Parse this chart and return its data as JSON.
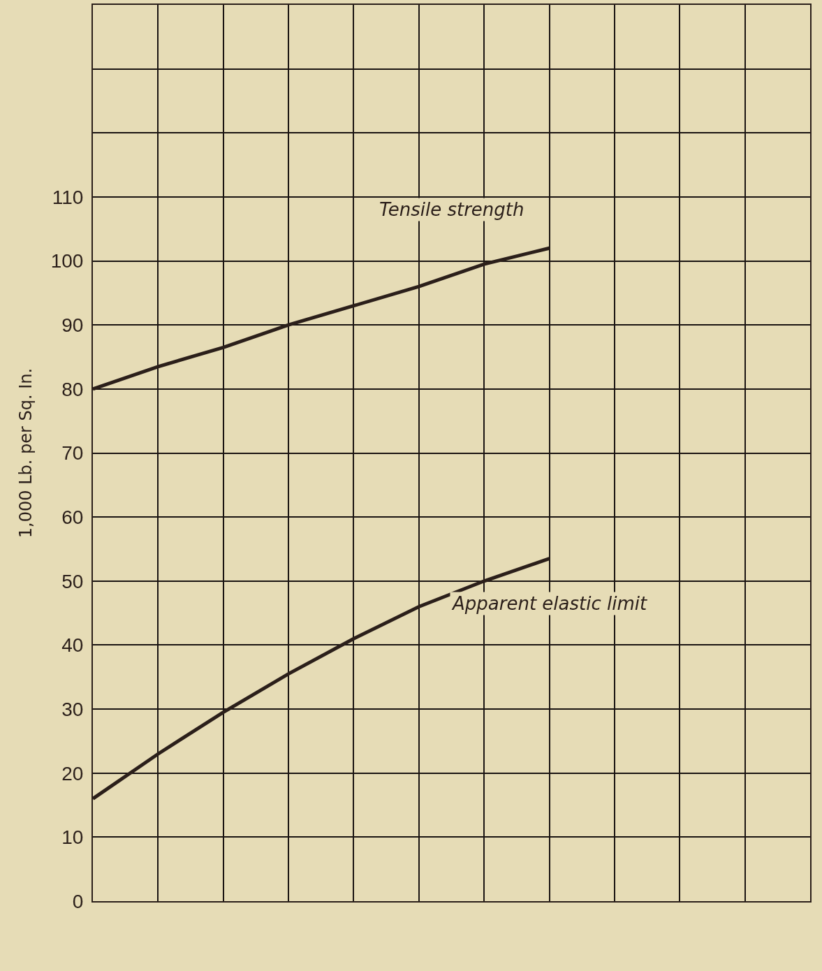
{
  "chart_data": {
    "type": "line",
    "ylabel": "1,000 Lb. per Sq. In.",
    "categories": [
      null,
      null,
      null,
      null,
      null,
      null,
      null,
      null,
      null,
      null,
      null,
      null
    ],
    "series": [
      {
        "name": "Tensile strength",
        "color": "#2b1f1a",
        "values": [
          80,
          83.5,
          86.5,
          90,
          93,
          96,
          99.5,
          102,
          null,
          null,
          null,
          null
        ]
      },
      {
        "name": "Apparent elastic limit",
        "color": "#2b1f1a",
        "values": [
          16,
          23,
          29.5,
          35.5,
          41,
          46,
          50,
          53.5,
          null,
          null,
          null,
          null
        ]
      }
    ],
    "ylim": [
      0,
      140
    ],
    "yticks": [
      0,
      10,
      20,
      30,
      40,
      50,
      60,
      70,
      80,
      90,
      100,
      110,
      {
        "value": 120,
        "label": null
      },
      {
        "value": 130,
        "label": null
      }
    ],
    "grid": true,
    "legend": false,
    "marker": "none",
    "line_style": "solid"
  }
}
